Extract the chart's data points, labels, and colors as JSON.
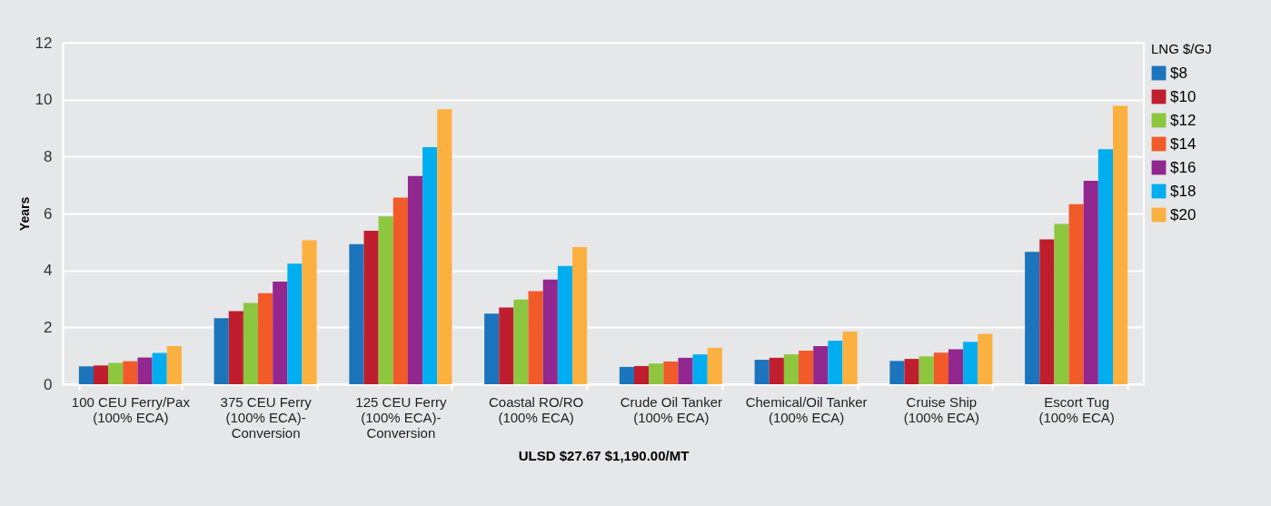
{
  "chart_data": {
    "type": "bar",
    "xlabel": "ULSD $27.67 $1,190.00/MT",
    "ylabel": "Years",
    "legend_title": "LNG $/GJ",
    "legend": "right",
    "grid": "y",
    "categories": [
      "100 CEU Ferry/Pax (100% ECA)",
      "375 CEU Ferry (100% ECA)-Conversion",
      "125 CEU Ferry (100% ECA)-Conversion",
      "Coastal RO/RO (100% ECA)",
      "Crude Oil Tanker (100% ECA)",
      "Chemical/Oil Tanker (100% ECA)",
      "Cruise Ship (100% ECA)",
      "Escort Tug (100% ECA)"
    ],
    "ylim": [
      0,
      12
    ],
    "yticks": [
      0,
      2,
      4,
      6,
      8,
      10,
      12
    ],
    "series": [
      {
        "name": "$8",
        "color": "#1c75bc",
        "values": [
          0.63,
          2.32,
          4.92,
          2.48,
          0.61,
          0.86,
          0.82,
          4.65
        ]
      },
      {
        "name": "$10",
        "color": "#be1e2d",
        "values": [
          0.66,
          2.57,
          5.39,
          2.7,
          0.64,
          0.93,
          0.89,
          5.09
        ]
      },
      {
        "name": "$12",
        "color": "#8dc63f",
        "values": [
          0.75,
          2.86,
          5.9,
          2.98,
          0.73,
          1.05,
          0.98,
          5.63
        ]
      },
      {
        "name": "$14",
        "color": "#f15a29",
        "values": [
          0.81,
          3.2,
          6.56,
          3.27,
          0.8,
          1.18,
          1.11,
          6.33
        ]
      },
      {
        "name": "$16",
        "color": "#92278f",
        "values": [
          0.94,
          3.61,
          7.32,
          3.68,
          0.93,
          1.34,
          1.23,
          7.15
        ]
      },
      {
        "name": "$18",
        "color": "#00aeef",
        "values": [
          1.1,
          4.24,
          8.33,
          4.16,
          1.05,
          1.53,
          1.49,
          8.26
        ]
      },
      {
        "name": "$20",
        "color": "#fbb040",
        "values": [
          1.34,
          5.06,
          9.66,
          4.82,
          1.28,
          1.85,
          1.77,
          9.78
        ]
      }
    ]
  }
}
